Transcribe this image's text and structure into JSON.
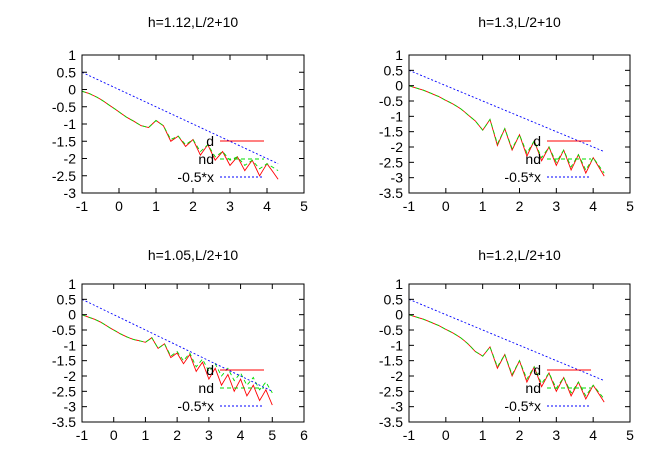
{
  "chart_data": [
    {
      "type": "line",
      "title": "h=1.12,L/2+10",
      "xlabel": "",
      "ylabel": "",
      "xlim": [
        -1,
        5
      ],
      "ylim": [
        -3,
        1
      ],
      "xticks": [
        "-1",
        "0",
        "1",
        "2",
        "3",
        "4",
        "5"
      ],
      "yticks": [
        "1",
        "0.5",
        "0",
        "-0.5",
        "-1",
        "-1.5",
        "-2",
        "-2.5",
        "-3"
      ],
      "legend_position": "bottom-right",
      "x_end": 4.3,
      "series": [
        {
          "name": "d",
          "color": "#ff0000",
          "style": "solid",
          "x": [
            -1,
            -0.8,
            -0.6,
            -0.4,
            -0.2,
            0,
            0.2,
            0.4,
            0.6,
            0.8,
            1.0,
            1.2,
            1.4,
            1.6,
            1.8,
            2.0,
            2.2,
            2.4,
            2.6,
            2.8,
            3.0,
            3.2,
            3.4,
            3.6,
            3.8,
            4.0,
            4.3
          ],
          "y": [
            -0.05,
            -0.12,
            -0.22,
            -0.35,
            -0.5,
            -0.65,
            -0.8,
            -0.92,
            -1.05,
            -1.1,
            -0.9,
            -1.05,
            -1.5,
            -1.35,
            -1.65,
            -1.45,
            -1.9,
            -1.6,
            -2.05,
            -1.8,
            -2.2,
            -1.95,
            -2.35,
            -2.05,
            -2.5,
            -2.15,
            -2.6
          ]
        },
        {
          "name": "nd",
          "color": "#00dd00",
          "style": "dashed",
          "x": [
            -1,
            -0.8,
            -0.6,
            -0.4,
            -0.2,
            0,
            0.2,
            0.4,
            0.6,
            0.8,
            1.0,
            1.2,
            1.4,
            1.6,
            1.8,
            2.0,
            2.2,
            2.4,
            2.6,
            2.8,
            3.0,
            3.2,
            3.4,
            3.6,
            3.8,
            4.0,
            4.3
          ],
          "y": [
            -0.05,
            -0.12,
            -0.22,
            -0.35,
            -0.5,
            -0.65,
            -0.8,
            -0.92,
            -1.05,
            -1.1,
            -0.9,
            -1.05,
            -1.45,
            -1.35,
            -1.6,
            -1.45,
            -1.8,
            -1.6,
            -1.95,
            -1.8,
            -2.05,
            -1.95,
            -2.2,
            -2.05,
            -2.3,
            -2.15,
            -2.35
          ]
        },
        {
          "name": "-0.5*x",
          "color": "#0000ff",
          "style": "dotted",
          "x": [
            -1,
            4.3
          ],
          "y": [
            0.5,
            -2.15
          ]
        }
      ]
    },
    {
      "type": "line",
      "title": "h=1.3,L/2+10",
      "xlabel": "",
      "ylabel": "",
      "xlim": [
        -1,
        5
      ],
      "ylim": [
        -3.5,
        1
      ],
      "xticks": [
        "-1",
        "0",
        "1",
        "2",
        "3",
        "4",
        "5"
      ],
      "yticks": [
        "1",
        "0.5",
        "0",
        "-0.5",
        "-1",
        "-1.5",
        "-2",
        "-2.5",
        "-3",
        "-3.5"
      ],
      "legend_position": "bottom-right",
      "x_end": 4.3,
      "series": [
        {
          "name": "d",
          "color": "#ff0000",
          "style": "solid",
          "x": [
            -1,
            -0.8,
            -0.6,
            -0.4,
            -0.2,
            0,
            0.2,
            0.4,
            0.6,
            0.8,
            1.0,
            1.2,
            1.4,
            1.6,
            1.8,
            2.0,
            2.2,
            2.4,
            2.6,
            2.8,
            3.0,
            3.2,
            3.4,
            3.6,
            3.8,
            4.0,
            4.3
          ],
          "y": [
            0.0,
            -0.08,
            -0.15,
            -0.25,
            -0.35,
            -0.48,
            -0.6,
            -0.75,
            -0.95,
            -1.15,
            -1.45,
            -1.1,
            -1.95,
            -1.4,
            -2.1,
            -1.6,
            -2.3,
            -1.8,
            -2.45,
            -2.0,
            -2.6,
            -2.1,
            -2.75,
            -2.25,
            -2.85,
            -2.35,
            -2.95
          ]
        },
        {
          "name": "nd",
          "color": "#00dd00",
          "style": "dashed",
          "x": [
            -1,
            -0.8,
            -0.6,
            -0.4,
            -0.2,
            0,
            0.2,
            0.4,
            0.6,
            0.8,
            1.0,
            1.2,
            1.4,
            1.6,
            1.8,
            2.0,
            2.2,
            2.4,
            2.6,
            2.8,
            3.0,
            3.2,
            3.4,
            3.6,
            3.8,
            4.0,
            4.3
          ],
          "y": [
            0.0,
            -0.08,
            -0.15,
            -0.25,
            -0.35,
            -0.48,
            -0.6,
            -0.75,
            -0.95,
            -1.15,
            -1.45,
            -1.1,
            -1.9,
            -1.4,
            -2.05,
            -1.6,
            -2.2,
            -1.8,
            -2.35,
            -2.0,
            -2.5,
            -2.1,
            -2.65,
            -2.25,
            -2.75,
            -2.35,
            -2.85
          ]
        },
        {
          "name": "-0.5*x",
          "color": "#0000ff",
          "style": "dotted",
          "x": [
            -1,
            4.3
          ],
          "y": [
            0.5,
            -2.15
          ]
        }
      ]
    },
    {
      "type": "line",
      "title": "h=1.05,L/2+10",
      "xlabel": "",
      "ylabel": "",
      "xlim": [
        -1,
        6
      ],
      "ylim": [
        -3.5,
        1
      ],
      "xticks": [
        "-1",
        "0",
        "1",
        "2",
        "3",
        "4",
        "5",
        "6"
      ],
      "yticks": [
        "1",
        "0.5",
        "0",
        "-0.5",
        "-1",
        "-1.5",
        "-2",
        "-2.5",
        "-3",
        "-3.5"
      ],
      "legend_position": "bottom-right",
      "x_end": 5.0,
      "series": [
        {
          "name": "d",
          "color": "#ff0000",
          "style": "solid",
          "x": [
            -1,
            -0.8,
            -0.6,
            -0.4,
            -0.2,
            0,
            0.2,
            0.4,
            0.6,
            0.8,
            1.0,
            1.2,
            1.4,
            1.6,
            1.8,
            2.0,
            2.2,
            2.4,
            2.6,
            2.8,
            3.0,
            3.2,
            3.4,
            3.6,
            3.8,
            4.0,
            4.2,
            4.4,
            4.6,
            4.8,
            5.0
          ],
          "y": [
            0.0,
            -0.08,
            -0.15,
            -0.25,
            -0.38,
            -0.5,
            -0.62,
            -0.72,
            -0.8,
            -0.85,
            -0.9,
            -0.75,
            -1.1,
            -0.95,
            -1.4,
            -1.25,
            -1.6,
            -1.3,
            -1.85,
            -1.55,
            -2.1,
            -1.75,
            -2.3,
            -1.95,
            -2.5,
            -2.1,
            -2.65,
            -2.3,
            -2.8,
            -2.45,
            -2.95
          ]
        },
        {
          "name": "nd",
          "color": "#00dd00",
          "style": "dashed",
          "x": [
            -1,
            -0.8,
            -0.6,
            -0.4,
            -0.2,
            0,
            0.2,
            0.4,
            0.6,
            0.8,
            1.0,
            1.2,
            1.4,
            1.6,
            1.8,
            2.0,
            2.2,
            2.4,
            2.6,
            2.8,
            3.0,
            3.2,
            3.4,
            3.6,
            3.8,
            4.0,
            4.2,
            4.4,
            4.6,
            4.8,
            5.0
          ],
          "y": [
            0.0,
            -0.08,
            -0.15,
            -0.25,
            -0.38,
            -0.5,
            -0.62,
            -0.72,
            -0.8,
            -0.85,
            -0.9,
            -0.75,
            -1.1,
            -0.95,
            -1.35,
            -1.2,
            -1.5,
            -1.25,
            -1.7,
            -1.45,
            -1.85,
            -1.6,
            -2.0,
            -1.75,
            -2.15,
            -1.9,
            -2.3,
            -2.05,
            -2.45,
            -2.2,
            -2.55
          ]
        },
        {
          "name": "-0.5*x",
          "color": "#0000ff",
          "style": "dotted",
          "x": [
            -1,
            5.0
          ],
          "y": [
            0.5,
            -2.5
          ]
        }
      ]
    },
    {
      "type": "line",
      "title": "h=1.2,L/2+10",
      "xlabel": "",
      "ylabel": "",
      "xlim": [
        -1,
        5
      ],
      "ylim": [
        -3.5,
        1
      ],
      "xticks": [
        "-1",
        "0",
        "1",
        "2",
        "3",
        "4",
        "5"
      ],
      "yticks": [
        "1",
        "0.5",
        "0",
        "-0.5",
        "-1",
        "-1.5",
        "-2",
        "-2.5",
        "-3",
        "-3.5"
      ],
      "legend_position": "bottom-right",
      "x_end": 4.3,
      "series": [
        {
          "name": "d",
          "color": "#ff0000",
          "style": "solid",
          "x": [
            -1,
            -0.8,
            -0.6,
            -0.4,
            -0.2,
            0,
            0.2,
            0.4,
            0.6,
            0.8,
            1.0,
            1.2,
            1.4,
            1.6,
            1.8,
            2.0,
            2.2,
            2.4,
            2.6,
            2.8,
            3.0,
            3.2,
            3.4,
            3.6,
            3.8,
            4.0,
            4.3
          ],
          "y": [
            0.0,
            -0.08,
            -0.15,
            -0.25,
            -0.35,
            -0.48,
            -0.6,
            -0.75,
            -0.95,
            -1.2,
            -1.35,
            -1.05,
            -1.75,
            -1.3,
            -2.0,
            -1.5,
            -2.2,
            -1.7,
            -2.35,
            -1.9,
            -2.5,
            -2.05,
            -2.65,
            -2.2,
            -2.75,
            -2.3,
            -2.85
          ]
        },
        {
          "name": "nd",
          "color": "#00dd00",
          "style": "dashed",
          "x": [
            -1,
            -0.8,
            -0.6,
            -0.4,
            -0.2,
            0,
            0.2,
            0.4,
            0.6,
            0.8,
            1.0,
            1.2,
            1.4,
            1.6,
            1.8,
            2.0,
            2.2,
            2.4,
            2.6,
            2.8,
            3.0,
            3.2,
            3.4,
            3.6,
            3.8,
            4.0,
            4.3
          ],
          "y": [
            0.0,
            -0.08,
            -0.15,
            -0.25,
            -0.35,
            -0.48,
            -0.6,
            -0.75,
            -0.95,
            -1.2,
            -1.35,
            -1.05,
            -1.7,
            -1.3,
            -1.95,
            -1.5,
            -2.1,
            -1.7,
            -2.25,
            -1.9,
            -2.4,
            -2.05,
            -2.55,
            -2.2,
            -2.65,
            -2.3,
            -2.75
          ]
        },
        {
          "name": "-0.5*x",
          "color": "#0000ff",
          "style": "dotted",
          "x": [
            -1,
            4.3
          ],
          "y": [
            0.5,
            -2.15
          ]
        }
      ]
    }
  ]
}
